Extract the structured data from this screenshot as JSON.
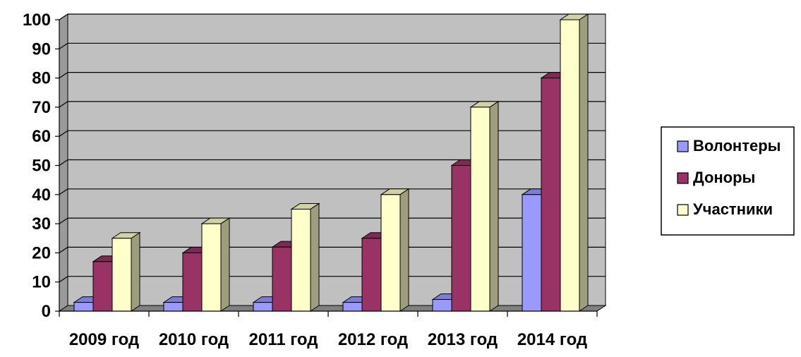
{
  "chart_data": {
    "type": "bar",
    "categories": [
      "2009 год",
      "2010 год",
      "2011 год",
      "2012 год",
      "2013 год",
      "2014 год"
    ],
    "series": [
      {
        "name": "Волонтеры",
        "values": [
          3,
          3,
          3,
          3,
          4,
          40
        ],
        "color": "#9999ff"
      },
      {
        "name": "Доноры",
        "values": [
          17,
          20,
          22,
          25,
          50,
          80
        ],
        "color": "#993366"
      },
      {
        "name": "Участники",
        "values": [
          25,
          30,
          35,
          40,
          70,
          100
        ],
        "color": "#ffffcc"
      }
    ],
    "ylim": [
      0,
      100
    ],
    "yticks": [
      0,
      10,
      20,
      30,
      40,
      50,
      60,
      70,
      80,
      90,
      100
    ],
    "grid": true,
    "legend_position": "right",
    "title": "",
    "xlabel": "",
    "ylabel": "",
    "colors": {
      "plot_wall": "#c0c0c0",
      "side_wall": "#9a9a9a",
      "floor": "#808080",
      "gridline": "#000000"
    }
  }
}
